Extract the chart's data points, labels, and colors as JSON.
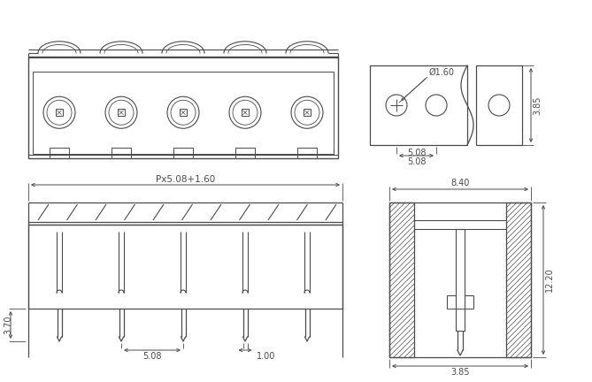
{
  "bg_color": "#ffffff",
  "lc": "#4a4a4a",
  "dc": "#4a4a4a",
  "fs": 7.0,
  "n_poles": 5,
  "labels": {
    "pitch": "Px5.08+1.60",
    "diam": "Ø1.60",
    "d508_top": "5.08",
    "d508_bot": "5.08",
    "d840": "8.40",
    "d1220": "12.20",
    "d385_tr": "3.85",
    "d385_br": "3.85",
    "d370": "3.70",
    "d100": "1.00"
  }
}
